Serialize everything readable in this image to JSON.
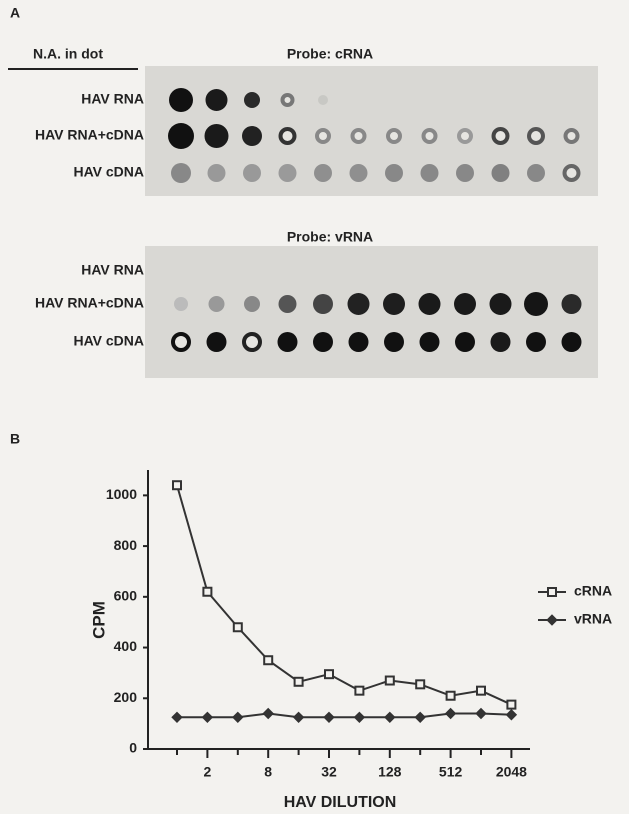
{
  "panel_a": {
    "label": "A",
    "row_header": "N.A. in dot",
    "blots": [
      {
        "probe": "Probe:  cRNA",
        "rows": [
          "HAV RNA",
          "HAV RNA+cDNA",
          "HAV cDNA"
        ]
      },
      {
        "probe": "Probe:  vRNA",
        "rows": [
          "HAV RNA",
          "HAV RNA+cDNA",
          "HAV cDNA"
        ]
      }
    ]
  },
  "chart_data": {
    "type": "line",
    "panel_label": "B",
    "x_label": "HAV DILUTION",
    "y_label": "CPM",
    "categories": [
      null,
      "2",
      null,
      "8",
      null,
      "32",
      null,
      "128",
      null,
      "512",
      null,
      "2048"
    ],
    "series": [
      {
        "name": "cRNA",
        "color": "#333333",
        "marker": "square",
        "values": [
          1040,
          620,
          480,
          350,
          265,
          295,
          230,
          270,
          255,
          210,
          230,
          175
        ]
      },
      {
        "name": "vRNA",
        "color": "#333333",
        "marker": "diamond",
        "values": [
          125,
          125,
          125,
          140,
          125,
          125,
          125,
          125,
          125,
          140,
          140,
          135
        ]
      }
    ],
    "ylim": [
      0,
      1100
    ],
    "yticks": [
      0,
      200,
      400,
      600,
      800,
      1000
    ],
    "grid": false,
    "legend": "right"
  }
}
